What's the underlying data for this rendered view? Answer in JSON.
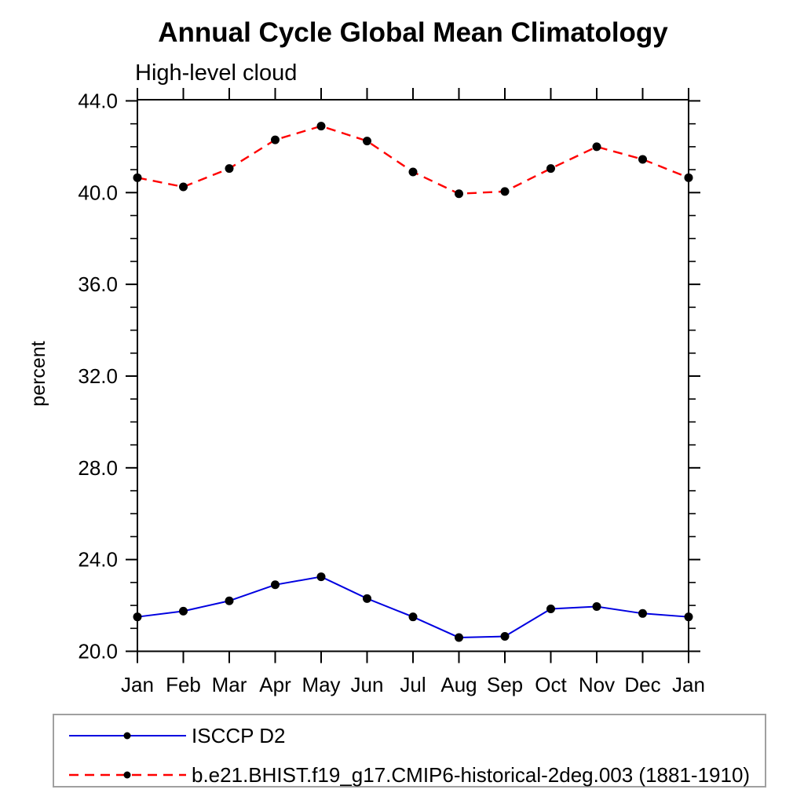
{
  "chart_data": {
    "type": "line",
    "title": "Annual Cycle Global Mean Climatology",
    "subtitle": "High-level cloud",
    "ylabel": "percent",
    "xlabel": "",
    "categories": [
      "Jan",
      "Feb",
      "Mar",
      "Apr",
      "May",
      "Jun",
      "Jul",
      "Aug",
      "Sep",
      "Oct",
      "Nov",
      "Dec",
      "Jan"
    ],
    "series": [
      {
        "name": "ISCCP D2",
        "line_style": "solid",
        "color": "#0000e0",
        "marker": "filled-circle",
        "marker_color": "#000000",
        "values": [
          21.5,
          21.75,
          22.2,
          22.9,
          23.25,
          22.3,
          21.5,
          20.6,
          20.65,
          21.85,
          21.95,
          21.65,
          21.5
        ]
      },
      {
        "name": "b.e21.BHIST.f19_g17.CMIP6-historical-2deg.003 (1881-1910)",
        "line_style": "dashed",
        "color": "#ff0000",
        "marker": "filled-circle",
        "marker_color": "#000000",
        "values": [
          40.65,
          40.25,
          41.05,
          42.3,
          42.9,
          42.25,
          40.9,
          39.95,
          40.05,
          41.05,
          42.0,
          41.45,
          40.65
        ]
      }
    ],
    "ylim": [
      20.0,
      44.05
    ],
    "y_major_ticks": [
      20,
      24,
      28,
      32,
      36,
      40,
      44
    ],
    "y_tick_labels": [
      "20.0",
      "24.0",
      "28.0",
      "32.0",
      "36.0",
      "40.0",
      "44.0"
    ],
    "y_minor_step": 1,
    "grid": "off",
    "tick_direction": "out",
    "frame": "box",
    "legend_position": "bottom-left-box",
    "legend_border_color": "#a0a0a0"
  }
}
